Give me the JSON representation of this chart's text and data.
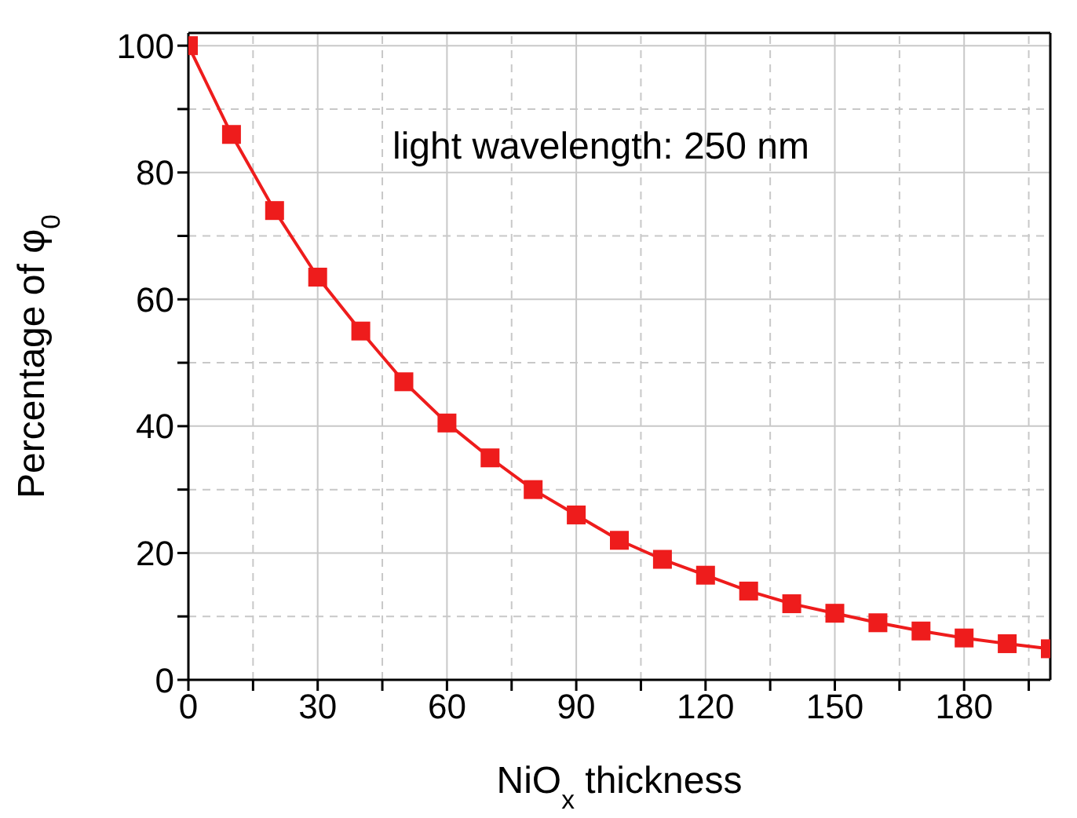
{
  "chart_data": {
    "type": "line",
    "xlabel": "NiO$_{x}$ thickness",
    "ylabel": "Percentage of φ$_{0}$",
    "annotations": [
      "light wavelength: 250 nm"
    ],
    "x": [
      0,
      10,
      20,
      30,
      40,
      50,
      60,
      70,
      80,
      90,
      100,
      110,
      120,
      130,
      140,
      150,
      160,
      170,
      180,
      190,
      200
    ],
    "series": [
      {
        "color": "#ee1c1c",
        "values": [
          100,
          86,
          74,
          63.5,
          55,
          47,
          40.5,
          35,
          30,
          26,
          22,
          19,
          16.5,
          14,
          12,
          10.5,
          9,
          7.7,
          6.6,
          5.7,
          4.9
        ]
      }
    ],
    "xlim": [
      0,
      200
    ],
    "xticks": [
      0,
      {
        "value": 15,
        "label": null
      },
      30,
      {
        "value": 45,
        "label": null
      },
      60,
      {
        "value": 75,
        "label": null
      },
      90,
      {
        "value": 105,
        "label": null
      },
      120,
      {
        "value": 135,
        "label": null
      },
      150,
      {
        "value": 165,
        "label": null
      },
      180,
      {
        "value": 195,
        "label": null
      }
    ],
    "ylim": [
      0,
      102
    ],
    "yticks": [
      0,
      {
        "value": 10,
        "label": null
      },
      20,
      {
        "value": 30,
        "label": null
      },
      40,
      {
        "value": 50,
        "label": null
      },
      60,
      {
        "value": 70,
        "label": null
      },
      80,
      {
        "value": 90,
        "label": null
      },
      100
    ],
    "grid": true,
    "marker": "square",
    "line_style": "solid"
  }
}
